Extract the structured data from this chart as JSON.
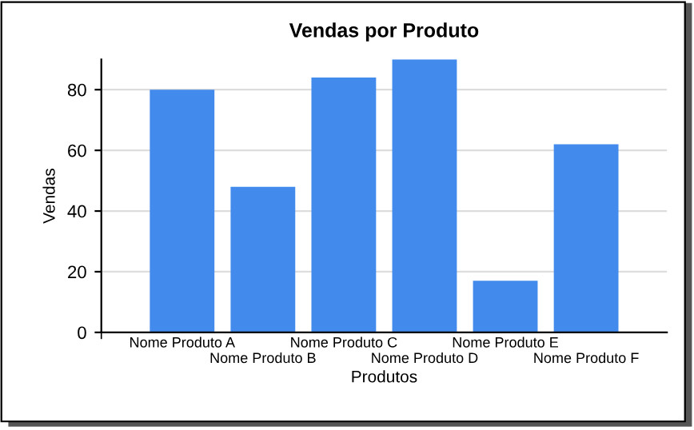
{
  "chart_data": {
    "type": "bar",
    "title": "Vendas por Produto",
    "xlabel": "Produtos",
    "ylabel": "Vendas",
    "categories": [
      "Nome Produto A",
      "Nome Produto B",
      "Nome Produto C",
      "Nome Produto D",
      "Nome Produto E",
      "Nome Produto F"
    ],
    "values": [
      80,
      48,
      84,
      90,
      17,
      62
    ],
    "color": "#428bed",
    "ylim": [
      0,
      90
    ],
    "yticks": [
      0,
      20,
      40,
      60,
      80
    ],
    "grid": "y",
    "legend": false
  }
}
